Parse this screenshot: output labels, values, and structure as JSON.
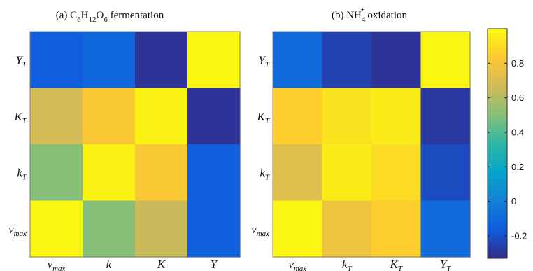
{
  "chart_data": [
    {
      "type": "heatmap",
      "title_parts": {
        "pre": "(a) C",
        "s1": "6",
        "m1": "H",
        "s2": "12",
        "m2": "O",
        "s3": "6",
        "post": " fermentation"
      },
      "rows": [
        {
          "base": "Y",
          "sub": "T"
        },
        {
          "base": "K",
          "sub": "T"
        },
        {
          "base": "k",
          "sub": "T"
        },
        {
          "base": "v",
          "sub": "max"
        }
      ],
      "cols": [
        {
          "base": "v",
          "sub": "max"
        },
        {
          "base": "k",
          "sub": ""
        },
        {
          "base": "K",
          "sub": ""
        },
        {
          "base": "Y",
          "sub": ""
        }
      ],
      "values": [
        [
          -0.15,
          -0.12,
          -0.3,
          0.98
        ],
        [
          0.68,
          0.82,
          0.97,
          -0.3
        ],
        [
          0.5,
          0.97,
          0.82,
          -0.15
        ],
        [
          0.98,
          0.5,
          0.65,
          -0.15
        ]
      ]
    },
    {
      "type": "heatmap",
      "title_parts": {
        "pre": "(b) NH",
        "s1": "4",
        "sup1": "+",
        "post": " oxidation"
      },
      "rows": [
        {
          "base": "Y",
          "sub": "T"
        },
        {
          "base": "K",
          "sub": "T"
        },
        {
          "base": "k",
          "sub": "T"
        },
        {
          "base": "v",
          "sub": "max"
        }
      ],
      "cols": [
        {
          "base": "v",
          "sub": "max"
        },
        {
          "base": "k",
          "sub": "T"
        },
        {
          "base": "K",
          "sub": "T"
        },
        {
          "base": "Y",
          "sub": "T"
        }
      ],
      "values": [
        [
          -0.1,
          -0.25,
          -0.3,
          0.98
        ],
        [
          0.85,
          0.92,
          0.95,
          -0.28
        ],
        [
          0.72,
          0.95,
          0.9,
          -0.22
        ],
        [
          0.98,
          0.78,
          0.85,
          -0.1
        ]
      ]
    }
  ],
  "colorbar": {
    "min": -0.33,
    "max": 1.0,
    "ticks": [
      -0.2,
      0,
      0.2,
      0.4,
      0.6,
      0.8
    ],
    "tick_labels": [
      "-0.2",
      "0",
      "0.2",
      "0.4",
      "0.6",
      "0.8"
    ],
    "colormap": "parula",
    "stops": [
      "#352a87",
      "#0f5cdd",
      "#1481d6",
      "#06a4ca",
      "#2eb7a4",
      "#87bf77",
      "#d1bb59",
      "#fec832",
      "#f9fb0e"
    ]
  }
}
